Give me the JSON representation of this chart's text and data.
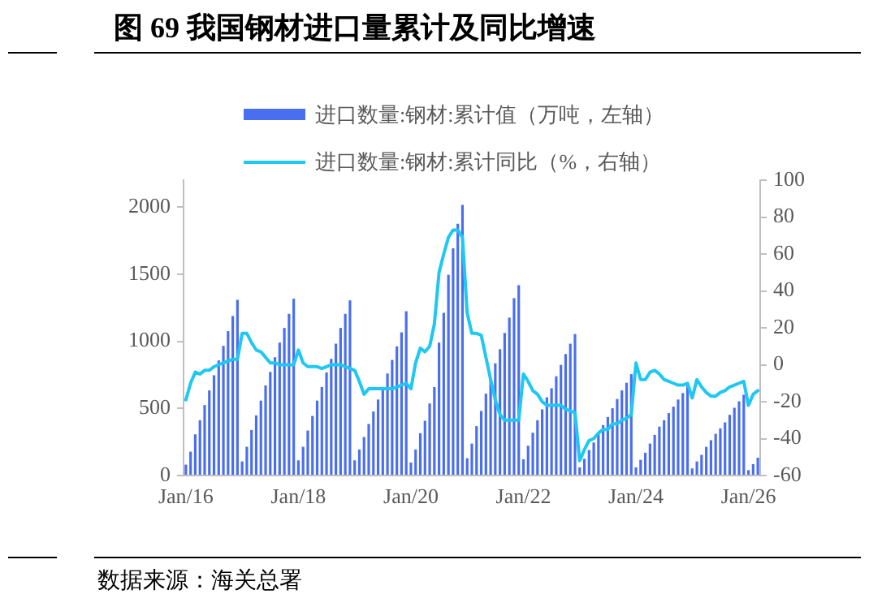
{
  "chart_data": {
    "type": "bar",
    "title": "图 69  我国钢材进口量累计及同比增速",
    "categories": [
      "Jan/16",
      null,
      null,
      null,
      null,
      null,
      null,
      null,
      null,
      null,
      null,
      null,
      null,
      null,
      null,
      null,
      null,
      null,
      null,
      null,
      null,
      null,
      null,
      null,
      "Jan/18",
      null,
      null,
      null,
      null,
      null,
      null,
      null,
      null,
      null,
      null,
      null,
      null,
      null,
      null,
      null,
      null,
      null,
      null,
      null,
      null,
      null,
      null,
      null,
      "Jan/20",
      null,
      null,
      null,
      null,
      null,
      null,
      null,
      null,
      null,
      null,
      null,
      null,
      null,
      null,
      null,
      null,
      null,
      null,
      null,
      null,
      null,
      null,
      null,
      "Jan/22",
      null,
      null,
      null,
      null,
      null,
      null,
      null,
      null,
      null,
      null,
      null,
      null,
      null,
      null,
      null,
      null,
      null,
      null,
      null,
      null,
      null,
      null,
      null,
      "Jan/24",
      null,
      null,
      null,
      null,
      null,
      null,
      null,
      null,
      null,
      null,
      null,
      null,
      null,
      null,
      null,
      null,
      null,
      null,
      null,
      null,
      null,
      null,
      null,
      "Jan/26",
      null,
      null
    ],
    "series": [
      {
        "name": "进口数量:钢材:累计值（万吨，左轴）",
        "color": "#4a6ef0",
        "values": [
          81,
          178,
          307,
          412,
          525,
          634,
          747,
          857,
          966,
          1075,
          1188,
          1309,
          105,
          214,
          339,
          448,
          558,
          671,
          772,
          881,
          990,
          1099,
          1204,
          1317,
          113,
          214,
          335,
          444,
          558,
          659,
          768,
          869,
          982,
          1099,
          1204,
          1305,
          113,
          194,
          287,
          384,
          477,
          566,
          659,
          760,
          861,
          962,
          1067,
          1224,
          97,
          194,
          315,
          408,
          537,
          659,
          990,
          1212,
          1495,
          1693,
          1875,
          2016,
          129,
          238,
          368,
          481,
          610,
          723,
          836,
          941,
          1062,
          1176,
          1321,
          1418,
          121,
          222,
          319,
          412,
          493,
          582,
          650,
          739,
          824,
          905,
          982,
          1054,
          61,
          125,
          190,
          246,
          311,
          376,
          436,
          501,
          570,
          634,
          691,
          755,
          61,
          117,
          170,
          238,
          303,
          364,
          412,
          465,
          513,
          566,
          614,
          671,
          53,
          105,
          154,
          214,
          263,
          311,
          351,
          396,
          452,
          505,
          553,
          602,
          40,
          85,
          133
        ]
      },
      {
        "name": "进口数量:钢材:累计同比（%，右轴）",
        "type": "line",
        "axis": "y2",
        "color": "#1ec8f0",
        "values": [
          -19,
          -10,
          -4,
          -5,
          -3,
          -3,
          -1,
          0,
          1,
          2,
          3,
          3,
          17,
          17,
          12,
          8,
          7,
          4,
          1,
          1,
          0,
          0,
          0,
          0,
          8,
          1,
          -1,
          -1,
          -1,
          -2,
          -1,
          0,
          0,
          0,
          -1,
          -2,
          -3,
          -9,
          -16,
          -13,
          -13,
          -13,
          -13,
          -13,
          -13,
          -12,
          -11,
          -10,
          -13,
          1,
          9,
          7,
          10,
          22,
          50,
          60,
          69,
          73,
          73,
          69,
          28,
          17,
          17,
          16,
          4,
          -8,
          -19,
          -27,
          -30,
          -30,
          -30,
          -30,
          -5,
          -9,
          -14,
          -16,
          -20,
          -22,
          -22,
          -22,
          -22,
          -24,
          -25,
          -26,
          -52,
          -46,
          -41,
          -40,
          -37,
          -35,
          -35,
          -32,
          -32,
          -30,
          -29,
          -27,
          1,
          -8,
          -8,
          -4,
          -3,
          -5,
          -8,
          -9,
          -10,
          -11,
          -11,
          -10,
          -18,
          -8,
          -12,
          -15,
          -17,
          -17,
          -15,
          -14,
          -12,
          -11,
          -10,
          -9,
          -22,
          -16,
          -14
        ]
      }
    ],
    "ylim": [
      0,
      2200
    ],
    "yticks": [
      0,
      500,
      1000,
      1500,
      2000
    ],
    "y2lim": [
      -60,
      100
    ],
    "y2ticks": [
      -60,
      -40,
      -20,
      0,
      20,
      40,
      60,
      80,
      100
    ],
    "grid": false,
    "legend": "top",
    "annotations": [
      "数据来源：海关总署"
    ]
  }
}
